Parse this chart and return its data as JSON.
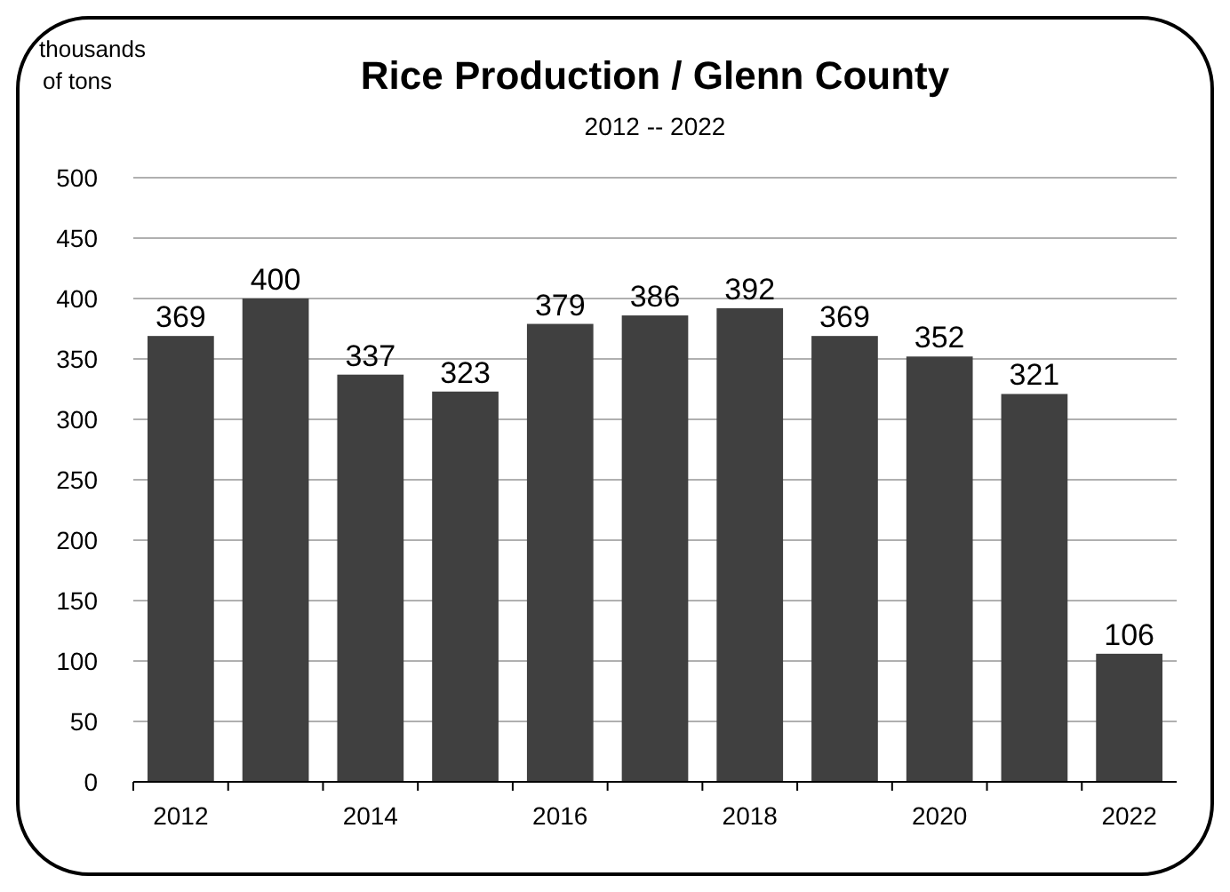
{
  "chart_data": {
    "type": "bar",
    "title": "Rice Production / Glenn County",
    "subtitle": "2012 -- 2022",
    "ylabel": "thousands of tons",
    "categories": [
      "2012",
      null,
      "2014",
      null,
      "2016",
      null,
      "2018",
      null,
      "2020",
      null,
      "2022"
    ],
    "values": [
      369,
      400,
      337,
      323,
      379,
      386,
      392,
      369,
      352,
      321,
      106
    ],
    "color": "#404040",
    "ylim": [
      0,
      500
    ],
    "yticks": [
      0,
      50,
      100,
      150,
      200,
      250,
      300,
      350,
      400,
      450,
      500
    ],
    "grid": "y",
    "data_labels": true
  }
}
